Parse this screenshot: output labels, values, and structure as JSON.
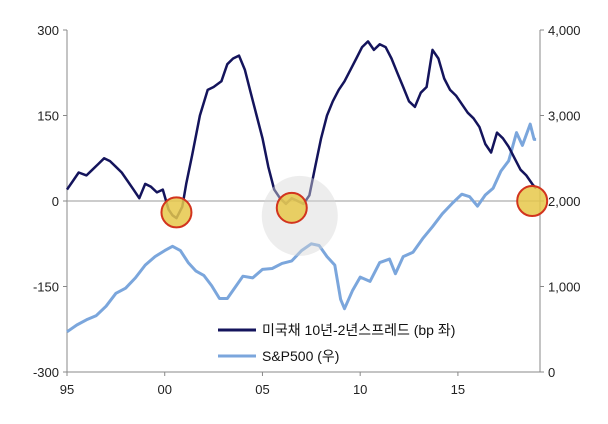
{
  "chart_data": {
    "type": "line",
    "x_tick_labels": [
      "95",
      "00",
      "05",
      "10",
      "15"
    ],
    "x_ticks": [
      1995,
      2000,
      2005,
      2010,
      2015
    ],
    "xlim": [
      1995,
      2019.2
    ],
    "left_axis": {
      "ylim": [
        -300,
        300
      ],
      "ticks": [
        300,
        150,
        0,
        -150,
        -300
      ],
      "tick_labels": [
        "300",
        "150",
        "0",
        "-150",
        "-300"
      ]
    },
    "right_axis": {
      "ylim": [
        0,
        4000
      ],
      "ticks": [
        4000,
        3000,
        2000,
        1000,
        0
      ],
      "tick_labels": [
        "4,000",
        "3,000",
        "2,000",
        "1,000",
        "0"
      ]
    },
    "grid": false,
    "legend_position": "bottom-right",
    "colors": {
      "spread": "#14145c",
      "sp500": "#7ba6dc",
      "highlight_fill": "#e6c84a",
      "highlight_stroke": "#d2341e"
    },
    "series": [
      {
        "name": "미국채 10년-2년스프레드 (bp 좌)",
        "axis": "left",
        "x": [
          1995.0,
          1995.3,
          1995.6,
          1996.0,
          1996.3,
          1996.6,
          1996.9,
          1997.2,
          1997.5,
          1997.8,
          1998.1,
          1998.4,
          1998.7,
          1999.0,
          1999.3,
          1999.6,
          1999.9,
          2000.2,
          2000.4,
          2000.6,
          2000.9,
          2001.1,
          2001.4,
          2001.8,
          2002.2,
          2002.5,
          2002.9,
          2003.2,
          2003.5,
          2003.8,
          2004.1,
          2004.4,
          2004.7,
          2005.0,
          2005.3,
          2005.6,
          2005.9,
          2006.2,
          2006.5,
          2006.8,
          2007.1,
          2007.4,
          2007.7,
          2008.0,
          2008.3,
          2008.6,
          2008.9,
          2009.2,
          2009.5,
          2009.8,
          2010.1,
          2010.4,
          2010.7,
          2011.0,
          2011.3,
          2011.6,
          2011.9,
          2012.2,
          2012.5,
          2012.8,
          2013.1,
          2013.4,
          2013.7,
          2014.0,
          2014.3,
          2014.6,
          2014.9,
          2015.2,
          2015.5,
          2015.8,
          2016.1,
          2016.4,
          2016.7,
          2017.0,
          2017.3,
          2017.6,
          2017.9,
          2018.2,
          2018.5,
          2018.8,
          2019.0
        ],
        "y": [
          20,
          35,
          50,
          45,
          55,
          65,
          75,
          70,
          60,
          50,
          35,
          20,
          5,
          30,
          25,
          15,
          20,
          -15,
          -25,
          -30,
          -10,
          30,
          80,
          150,
          195,
          200,
          210,
          240,
          250,
          255,
          230,
          190,
          150,
          110,
          60,
          20,
          5,
          -5,
          5,
          0,
          -5,
          10,
          60,
          110,
          150,
          175,
          195,
          210,
          230,
          250,
          270,
          280,
          265,
          275,
          270,
          250,
          225,
          200,
          175,
          165,
          190,
          200,
          265,
          250,
          215,
          195,
          185,
          170,
          155,
          145,
          130,
          100,
          85,
          120,
          110,
          95,
          75,
          55,
          45,
          30,
          22
        ]
      },
      {
        "name": "S&P500 (우)",
        "axis": "right",
        "x": [
          1995.0,
          1995.5,
          1996.0,
          1996.5,
          1997.0,
          1997.5,
          1998.0,
          1998.5,
          1999.0,
          1999.5,
          2000.0,
          2000.4,
          2000.8,
          2001.2,
          2001.6,
          2002.0,
          2002.4,
          2002.8,
          2003.2,
          2003.6,
          2004.0,
          2004.5,
          2005.0,
          2005.5,
          2006.0,
          2006.5,
          2007.0,
          2007.5,
          2007.9,
          2008.3,
          2008.7,
          2009.0,
          2009.2,
          2009.6,
          2010.0,
          2010.5,
          2011.0,
          2011.5,
          2011.8,
          2012.2,
          2012.7,
          2013.2,
          2013.7,
          2014.2,
          2014.7,
          2015.2,
          2015.6,
          2016.0,
          2016.4,
          2016.8,
          2017.2,
          2017.6,
          2018.0,
          2018.3,
          2018.7,
          2018.9,
          2019.0
        ],
        "y": [
          470,
          550,
          610,
          660,
          770,
          920,
          980,
          1100,
          1250,
          1350,
          1420,
          1470,
          1420,
          1280,
          1180,
          1130,
          1010,
          860,
          860,
          990,
          1120,
          1100,
          1200,
          1210,
          1270,
          1300,
          1420,
          1500,
          1480,
          1350,
          1250,
          850,
          740,
          950,
          1110,
          1060,
          1280,
          1320,
          1150,
          1350,
          1400,
          1560,
          1700,
          1850,
          1970,
          2080,
          2050,
          1940,
          2070,
          2150,
          2350,
          2470,
          2800,
          2650,
          2900,
          2720,
          2720
        ]
      }
    ],
    "highlights": [
      {
        "x": 2000.6,
        "y": -20
      },
      {
        "x": 2006.5,
        "y": -12
      },
      {
        "x": 2018.8,
        "y": 0
      }
    ]
  }
}
